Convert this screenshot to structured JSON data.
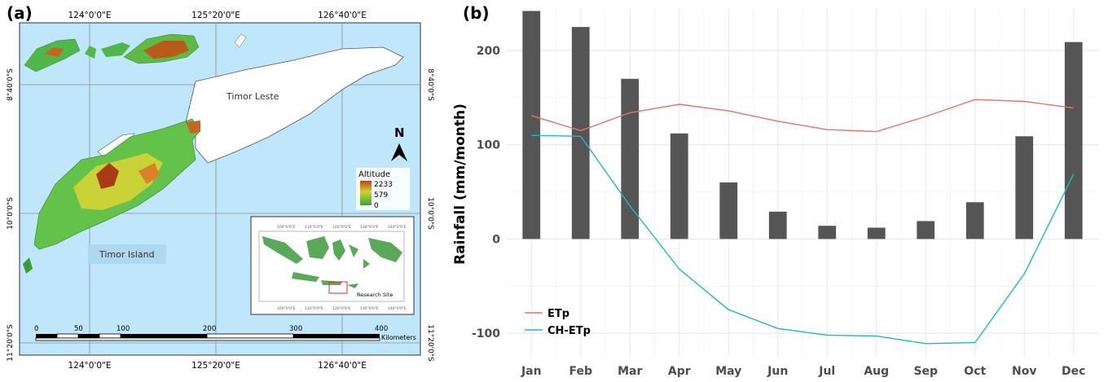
{
  "map_panel": {
    "panel_label": "(a)",
    "top_lon_labels": [
      "124°0'0\"E",
      "125°20'0\"E",
      "126°40'0\"E"
    ],
    "bottom_lon_labels": [
      "124°0'0\"E",
      "125°20'0\"E",
      "126°40'0\"E"
    ],
    "left_lat_labels": [
      "8°40'0\"S",
      "10°0'0\"S",
      "11°20'0\"S"
    ],
    "right_lat_labels": [
      "8°40'0\"S",
      "10°0'0\"S",
      "11°20'0\"S"
    ],
    "region_labels": {
      "timor_leste": "Timor Leste",
      "timor_island": "Timor Island"
    },
    "north_arrow": {
      "letter": "N",
      "icon": "north-arrow-icon"
    },
    "legend": {
      "title": "Altitude",
      "max": "2233",
      "mid": "579",
      "min": "0"
    },
    "inset": {
      "top_lon_labels": [
        "100°0'0\"E",
        "110°0'0\"E",
        "120°0'0\"E",
        "130°0'0\"E",
        "140°0'0\"E"
      ],
      "bottom_lon_labels": [
        "100°0'0\"E",
        "110°0'0\"E",
        "120°0'0\"E",
        "130°0'0\"E",
        "140°0'0\"E"
      ],
      "label": "Research Site"
    },
    "scale_bar": {
      "ticks": [
        "0",
        "50",
        "100",
        "200",
        "300",
        "400"
      ],
      "unit": "Kilometers"
    },
    "colors": {
      "sea": "#bfe6fa",
      "land_low": "#3bb54a",
      "land_high": "#b5471a",
      "timor_leste": "#ffffff"
    }
  },
  "chart_data": {
    "type": "bar",
    "panel_label": "(b)",
    "title": "",
    "xlabel": "",
    "ylabel": "Rainfall (mm/month)",
    "categories": [
      "Jan",
      "Feb",
      "Mar",
      "Apr",
      "May",
      "Jun",
      "Jul",
      "Aug",
      "Sep",
      "Oct",
      "Nov",
      "Dec"
    ],
    "ylim": [
      -125,
      245
    ],
    "yticks": [
      -100,
      0,
      100,
      200
    ],
    "grid": true,
    "legend_position": "bottom-left",
    "bars": {
      "values": [
        242,
        225,
        170,
        112,
        60,
        29,
        14,
        12,
        19,
        39,
        109,
        209
      ],
      "color": "#555555"
    },
    "series": [
      {
        "name": "ETp",
        "type": "line",
        "color": "#e8736b",
        "values": [
          131,
          115,
          134,
          143,
          136,
          125,
          116,
          114,
          130,
          148,
          146,
          139
        ]
      },
      {
        "name": "CH-ETp",
        "type": "line",
        "color": "#25b6bd",
        "values": [
          110,
          109,
          35,
          -32,
          -75,
          -95,
          -102,
          -103,
          -111,
          -110,
          -37,
          69
        ]
      }
    ]
  }
}
